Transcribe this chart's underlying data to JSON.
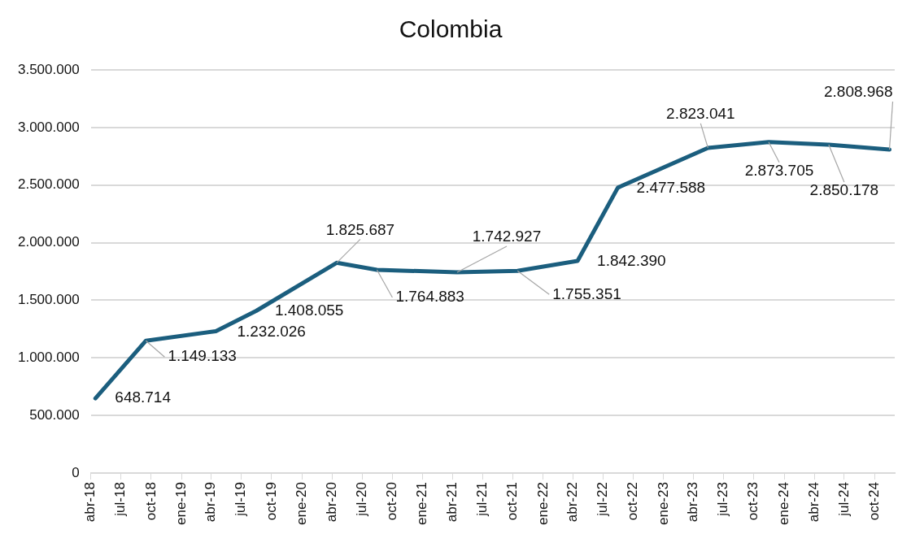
{
  "chart_data": {
    "type": "line",
    "title": "Colombia",
    "x": [
      "2018-04-15",
      "2018-09-15",
      "2019-04-15",
      "2019-08-15",
      "2020-04-15",
      "2020-08-15",
      "2021-04-15",
      "2021-10-15",
      "2022-04-15",
      "2022-08-15",
      "2023-05-15",
      "2023-11-15",
      "2024-05-15",
      "2024-11-15"
    ],
    "series": [
      {
        "color": "#1b5e7e",
        "values": [
          648714,
          1149133,
          1232026,
          1408055,
          1825687,
          1764883,
          1742927,
          1755351,
          1842390,
          2477588,
          2823041,
          2873705,
          2850178,
          2808968
        ],
        "value_labels": [
          "648.714",
          "1.149.133",
          "1.232.026",
          "1.408.055",
          "1.825.687",
          "1.764.883",
          "1.742.927",
          "1.755.351",
          "1.842.390",
          "2.477.588",
          "2.823.041",
          "2.873.705",
          "2.850.178",
          "2.808.968"
        ]
      }
    ],
    "xlim": [
      "2018-04-01",
      "2024-12-01"
    ],
    "xticks": [
      {
        "value": "2018-04-01",
        "label": "abr-18"
      },
      {
        "value": "2018-07-01",
        "label": "jul-18"
      },
      {
        "value": "2018-10-01",
        "label": "oct-18"
      },
      {
        "value": "2019-01-01",
        "label": "ene-19"
      },
      {
        "value": "2019-04-01",
        "label": "abr-19"
      },
      {
        "value": "2019-07-01",
        "label": "jul-19"
      },
      {
        "value": "2019-10-01",
        "label": "oct-19"
      },
      {
        "value": "2020-01-01",
        "label": "ene-20"
      },
      {
        "value": "2020-04-01",
        "label": "abr-20"
      },
      {
        "value": "2020-07-01",
        "label": "jul-20"
      },
      {
        "value": "2020-10-01",
        "label": "oct-20"
      },
      {
        "value": "2021-01-01",
        "label": "ene-21"
      },
      {
        "value": "2021-04-01",
        "label": "abr-21"
      },
      {
        "value": "2021-07-01",
        "label": "jul-21"
      },
      {
        "value": "2021-10-01",
        "label": "oct-21"
      },
      {
        "value": "2022-01-01",
        "label": "ene-22"
      },
      {
        "value": "2022-04-01",
        "label": "abr-22"
      },
      {
        "value": "2022-07-01",
        "label": "jul-22"
      },
      {
        "value": "2022-10-01",
        "label": "oct-22"
      },
      {
        "value": "2023-01-01",
        "label": "ene-23"
      },
      {
        "value": "2023-04-01",
        "label": "abr-23"
      },
      {
        "value": "2023-07-01",
        "label": "jul-23"
      },
      {
        "value": "2023-10-01",
        "label": "oct-23"
      },
      {
        "value": "2024-01-01",
        "label": "ene-24"
      },
      {
        "value": "2024-04-01",
        "label": "abr-24"
      },
      {
        "value": "2024-07-01",
        "label": "jul-24"
      },
      {
        "value": "2024-10-01",
        "label": "oct-24"
      }
    ],
    "ylim": [
      0,
      3500000
    ],
    "yticks": [
      {
        "value": 0,
        "label": "0"
      },
      {
        "value": 500000,
        "label": "500.000"
      },
      {
        "value": 1000000,
        "label": "1.000.000"
      },
      {
        "value": 1500000,
        "label": "1.500.000"
      },
      {
        "value": 2000000,
        "label": "2.000.000"
      },
      {
        "value": 2500000,
        "label": "2.500.000"
      },
      {
        "value": 3000000,
        "label": "3.000.000"
      },
      {
        "value": 3500000,
        "label": "3.500.000"
      }
    ],
    "grid": "y",
    "legend": false,
    "marker": "none",
    "line_style": "solid"
  }
}
